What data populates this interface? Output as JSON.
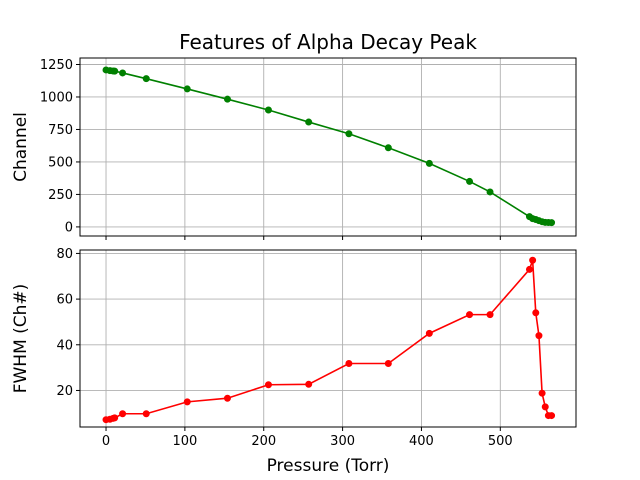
{
  "title": "Features of Alpha Decay Peak",
  "xlabel": "Pressure (Torr)",
  "chart_data": {
    "type": "line",
    "title": "Features of Alpha Decay Peak",
    "xlabel": "Pressure (Torr)",
    "shared_x": true,
    "xlim": [
      -33,
      596
    ],
    "xticks": [
      0,
      100,
      200,
      300,
      400,
      500
    ],
    "grid": true,
    "subplots": [
      {
        "ylabel": "Channel",
        "ylim": [
          -70,
          1300
        ],
        "yticks": [
          0,
          250,
          500,
          750,
          1000,
          1250
        ],
        "series": [
          {
            "color": "#008000",
            "marker": "circle",
            "x": [
              0,
              5,
              9,
              11,
              21,
              51,
              103,
              154,
              206,
              257,
              308,
              358,
              410,
              461,
              487,
              537,
              541,
              545,
              549,
              553,
              557,
              561,
              565
            ],
            "y": [
              1208,
              1203,
              1200,
              1199,
              1185,
              1141,
              1062,
              983,
              900,
              807,
              717,
              609,
              489,
              350,
              269,
              79,
              64,
              57,
              48,
              40,
              35,
              34,
              33
            ]
          }
        ]
      },
      {
        "ylabel": "FWHM (Ch#)",
        "ylim": [
          4,
          81.5
        ],
        "yticks": [
          20,
          40,
          60,
          80
        ],
        "series": [
          {
            "color": "#ff0000",
            "marker": "circle",
            "x": [
              0,
              5,
              9,
              11,
              21,
              51,
              103,
              154,
              206,
              257,
              308,
              358,
              410,
              461,
              487,
              537,
              541,
              545,
              549,
              553,
              557,
              561,
              565
            ],
            "y": [
              7.2,
              7.4,
              7.8,
              8.0,
              9.8,
              9.8,
              15.0,
              16.6,
              22.5,
              22.7,
              31.8,
              31.8,
              45.0,
              53.2,
              53.2,
              73.0,
              77.0,
              54.0,
              44.0,
              18.8,
              12.8,
              9.0,
              9.0
            ]
          }
        ]
      }
    ]
  }
}
